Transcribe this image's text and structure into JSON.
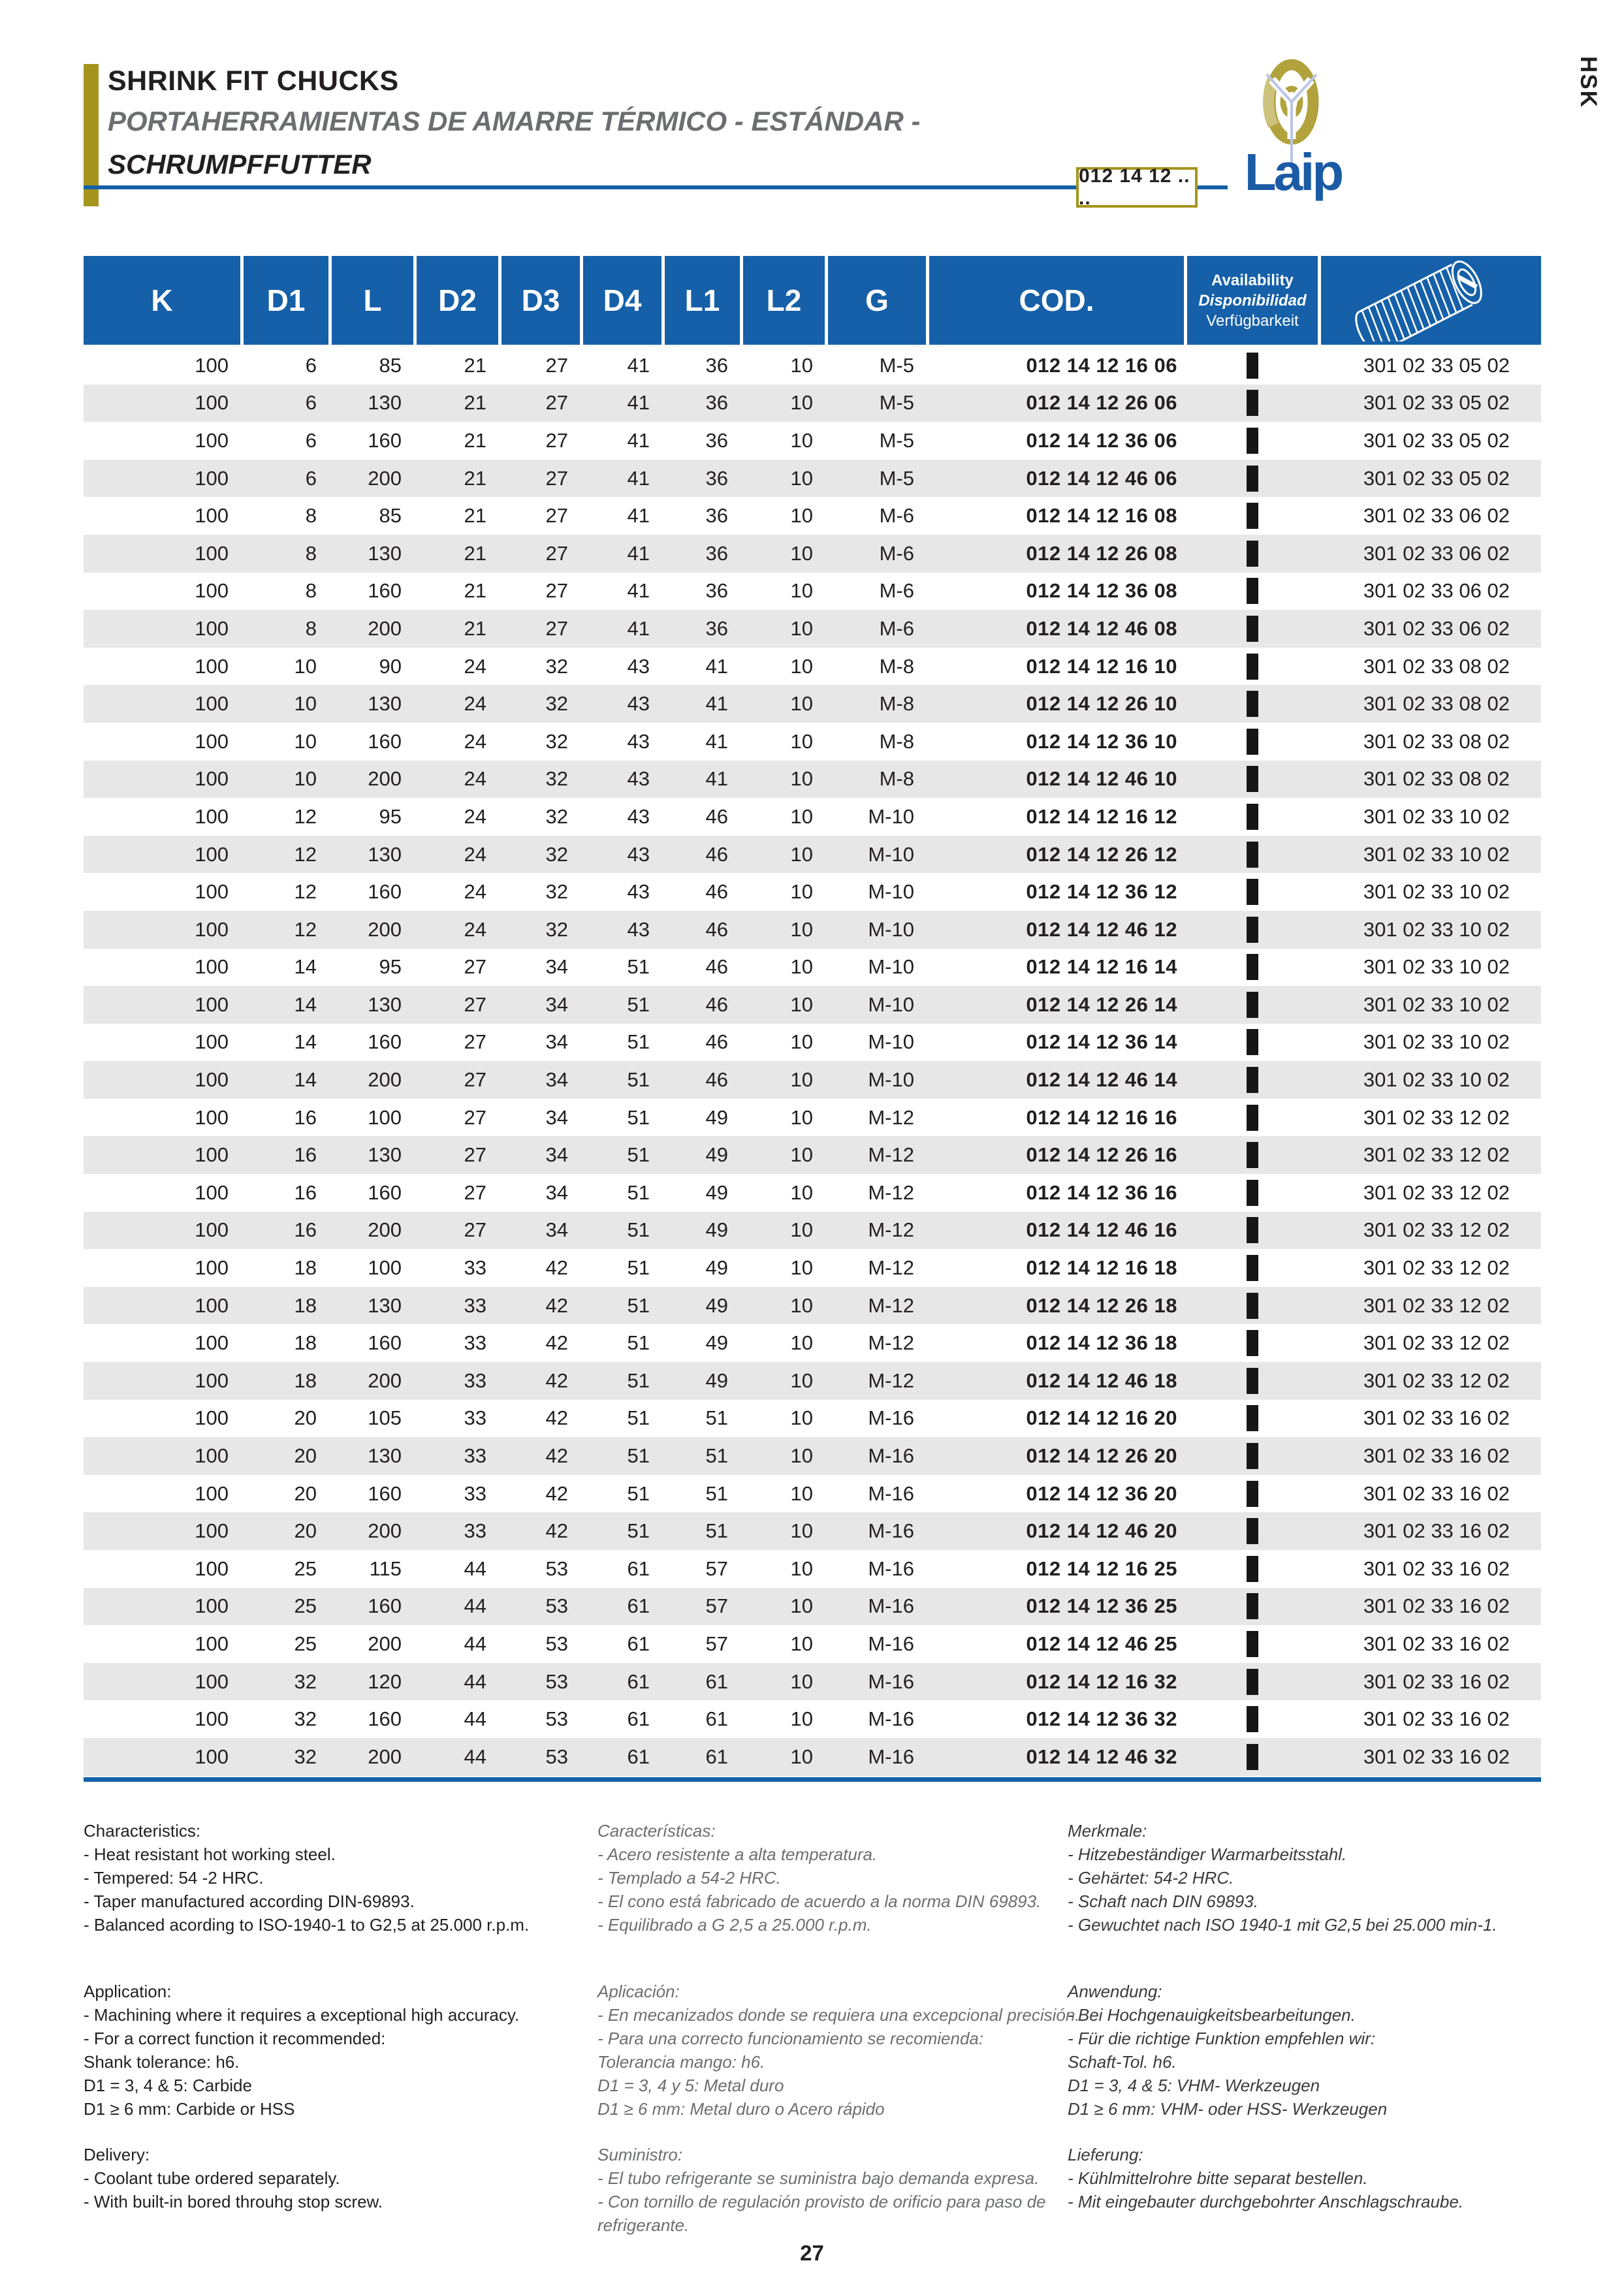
{
  "header": {
    "title": "SHRINK FIT CHUCKS",
    "subtitle_es": "PORTAHERRAMIENTAS DE AMARRE TÉRMICO - ESTÁNDAR -",
    "subtitle_de": "SCHRUMPFFUTTER",
    "product_code": "012 14 12 .. ..",
    "brand": "Laip",
    "corner_tag": "HSK",
    "accent_color": "#a5951d",
    "blue_color": "#1560a8"
  },
  "table": {
    "columns": [
      "K",
      "D1",
      "L",
      "D2",
      "D3",
      "D4",
      "L1",
      "L2",
      "G",
      "COD."
    ],
    "availability_header": {
      "en": "Availability",
      "es": "Disponibilidad",
      "de": "Verfügbarkeit"
    },
    "icon": "set-screw-drawing",
    "rows": [
      [
        "100",
        "6",
        "85",
        "21",
        "27",
        "41",
        "36",
        "10",
        "M-5",
        "012 14 12 16 06",
        true,
        "301 02 33 05 02"
      ],
      [
        "100",
        "6",
        "130",
        "21",
        "27",
        "41",
        "36",
        "10",
        "M-5",
        "012 14 12 26 06",
        true,
        "301 02 33 05 02"
      ],
      [
        "100",
        "6",
        "160",
        "21",
        "27",
        "41",
        "36",
        "10",
        "M-5",
        "012 14 12 36 06",
        true,
        "301 02 33 05 02"
      ],
      [
        "100",
        "6",
        "200",
        "21",
        "27",
        "41",
        "36",
        "10",
        "M-5",
        "012 14 12 46 06",
        true,
        "301 02 33 05 02"
      ],
      [
        "100",
        "8",
        "85",
        "21",
        "27",
        "41",
        "36",
        "10",
        "M-6",
        "012 14 12 16 08",
        true,
        "301 02 33 06 02"
      ],
      [
        "100",
        "8",
        "130",
        "21",
        "27",
        "41",
        "36",
        "10",
        "M-6",
        "012 14 12 26 08",
        true,
        "301 02 33 06 02"
      ],
      [
        "100",
        "8",
        "160",
        "21",
        "27",
        "41",
        "36",
        "10",
        "M-6",
        "012 14 12 36 08",
        true,
        "301 02 33 06 02"
      ],
      [
        "100",
        "8",
        "200",
        "21",
        "27",
        "41",
        "36",
        "10",
        "M-6",
        "012 14 12 46 08",
        true,
        "301 02 33 06 02"
      ],
      [
        "100",
        "10",
        "90",
        "24",
        "32",
        "43",
        "41",
        "10",
        "M-8",
        "012 14 12 16 10",
        true,
        "301 02 33 08 02"
      ],
      [
        "100",
        "10",
        "130",
        "24",
        "32",
        "43",
        "41",
        "10",
        "M-8",
        "012 14 12 26 10",
        true,
        "301 02 33 08 02"
      ],
      [
        "100",
        "10",
        "160",
        "24",
        "32",
        "43",
        "41",
        "10",
        "M-8",
        "012 14 12 36 10",
        true,
        "301 02 33 08 02"
      ],
      [
        "100",
        "10",
        "200",
        "24",
        "32",
        "43",
        "41",
        "10",
        "M-8",
        "012 14 12 46 10",
        true,
        "301 02 33 08 02"
      ],
      [
        "100",
        "12",
        "95",
        "24",
        "32",
        "43",
        "46",
        "10",
        "M-10",
        "012 14 12 16 12",
        true,
        "301 02 33 10 02"
      ],
      [
        "100",
        "12",
        "130",
        "24",
        "32",
        "43",
        "46",
        "10",
        "M-10",
        "012 14 12 26 12",
        true,
        "301 02 33 10 02"
      ],
      [
        "100",
        "12",
        "160",
        "24",
        "32",
        "43",
        "46",
        "10",
        "M-10",
        "012 14 12 36 12",
        true,
        "301 02 33 10 02"
      ],
      [
        "100",
        "12",
        "200",
        "24",
        "32",
        "43",
        "46",
        "10",
        "M-10",
        "012 14 12 46 12",
        true,
        "301 02 33 10 02"
      ],
      [
        "100",
        "14",
        "95",
        "27",
        "34",
        "51",
        "46",
        "10",
        "M-10",
        "012 14 12 16 14",
        true,
        "301 02 33 10 02"
      ],
      [
        "100",
        "14",
        "130",
        "27",
        "34",
        "51",
        "46",
        "10",
        "M-10",
        "012 14 12 26 14",
        true,
        "301 02 33 10 02"
      ],
      [
        "100",
        "14",
        "160",
        "27",
        "34",
        "51",
        "46",
        "10",
        "M-10",
        "012 14 12 36 14",
        true,
        "301 02 33 10 02"
      ],
      [
        "100",
        "14",
        "200",
        "27",
        "34",
        "51",
        "46",
        "10",
        "M-10",
        "012 14 12 46 14",
        true,
        "301 02 33 10 02"
      ],
      [
        "100",
        "16",
        "100",
        "27",
        "34",
        "51",
        "49",
        "10",
        "M-12",
        "012 14 12 16 16",
        true,
        "301 02 33 12 02"
      ],
      [
        "100",
        "16",
        "130",
        "27",
        "34",
        "51",
        "49",
        "10",
        "M-12",
        "012 14 12 26 16",
        true,
        "301 02 33 12 02"
      ],
      [
        "100",
        "16",
        "160",
        "27",
        "34",
        "51",
        "49",
        "10",
        "M-12",
        "012 14 12 36 16",
        true,
        "301 02 33 12 02"
      ],
      [
        "100",
        "16",
        "200",
        "27",
        "34",
        "51",
        "49",
        "10",
        "M-12",
        "012 14 12 46 16",
        true,
        "301 02 33 12 02"
      ],
      [
        "100",
        "18",
        "100",
        "33",
        "42",
        "51",
        "49",
        "10",
        "M-12",
        "012 14 12 16 18",
        true,
        "301 02 33 12 02"
      ],
      [
        "100",
        "18",
        "130",
        "33",
        "42",
        "51",
        "49",
        "10",
        "M-12",
        "012 14 12 26 18",
        true,
        "301 02 33 12 02"
      ],
      [
        "100",
        "18",
        "160",
        "33",
        "42",
        "51",
        "49",
        "10",
        "M-12",
        "012 14 12 36 18",
        true,
        "301 02 33 12 02"
      ],
      [
        "100",
        "18",
        "200",
        "33",
        "42",
        "51",
        "49",
        "10",
        "M-12",
        "012 14 12 46 18",
        true,
        "301 02 33 12 02"
      ],
      [
        "100",
        "20",
        "105",
        "33",
        "42",
        "51",
        "51",
        "10",
        "M-16",
        "012 14 12 16 20",
        true,
        "301 02 33 16 02"
      ],
      [
        "100",
        "20",
        "130",
        "33",
        "42",
        "51",
        "51",
        "10",
        "M-16",
        "012 14 12 26 20",
        true,
        "301 02 33 16 02"
      ],
      [
        "100",
        "20",
        "160",
        "33",
        "42",
        "51",
        "51",
        "10",
        "M-16",
        "012 14 12 36 20",
        true,
        "301 02 33 16 02"
      ],
      [
        "100",
        "20",
        "200",
        "33",
        "42",
        "51",
        "51",
        "10",
        "M-16",
        "012 14 12 46 20",
        true,
        "301 02 33 16 02"
      ],
      [
        "100",
        "25",
        "115",
        "44",
        "53",
        "61",
        "57",
        "10",
        "M-16",
        "012 14 12 16 25",
        true,
        "301 02 33 16 02"
      ],
      [
        "100",
        "25",
        "160",
        "44",
        "53",
        "61",
        "57",
        "10",
        "M-16",
        "012 14 12 36 25",
        true,
        "301 02 33 16 02"
      ],
      [
        "100",
        "25",
        "200",
        "44",
        "53",
        "61",
        "57",
        "10",
        "M-16",
        "012 14 12 46 25",
        true,
        "301 02 33 16 02"
      ],
      [
        "100",
        "32",
        "120",
        "44",
        "53",
        "61",
        "61",
        "10",
        "M-16",
        "012 14 12 16 32",
        true,
        "301 02 33 16 02"
      ],
      [
        "100",
        "32",
        "160",
        "44",
        "53",
        "61",
        "61",
        "10",
        "M-16",
        "012 14 12 36 32",
        true,
        "301 02 33 16 02"
      ],
      [
        "100",
        "32",
        "200",
        "44",
        "53",
        "61",
        "61",
        "10",
        "M-16",
        "012 14 12 46 32",
        true,
        "301 02 33 16 02"
      ]
    ]
  },
  "footer": {
    "en": {
      "sections": [
        {
          "title": "Characteristics:",
          "lines": [
            "- Heat resistant hot working steel.",
            "- Tempered: 54 -2 HRC.",
            "- Taper manufactured according DIN-69893.",
            "- Balanced acording to ISO-1940-1 to G2,5 at 25.000 r.p.m."
          ]
        },
        {
          "title": "Application:",
          "lines": [
            "- Machining where it requires a exceptional high accuracy.",
            "- For a correct function it recommended:",
            "Shank tolerance: h6.",
            "D1 = 3, 4 & 5:  Carbide",
            "D1 ≥ 6 mm:  Carbide or HSS"
          ]
        },
        {
          "title": "Delivery:",
          "lines": [
            "- Coolant tube ordered separately.",
            "- With built-in bored throuhg stop screw."
          ]
        }
      ]
    },
    "es": {
      "sections": [
        {
          "title": "Características:",
          "lines": [
            "- Acero resistente a alta temperatura.",
            "- Templado a 54-2 HRC.",
            "- El cono  está fabricado de acuerdo a la norma DIN 69893.",
            "- Equilibrado a G 2,5 a 25.000 r.p.m."
          ]
        },
        {
          "title": "Aplicación:",
          "lines": [
            "- En mecanizados donde se requiera una excepcional precisión.",
            "- Para una correcto funcionamiento se recomienda:",
            "Tolerancia mango: h6.",
            "D1 = 3, 4 y 5:  Metal duro",
            "D1 ≥ 6 mm:  Metal duro o Acero rápido"
          ]
        },
        {
          "title": "Suministro:",
          "lines": [
            "- El tubo refrigerante se suministra bajo demanda expresa.",
            "- Con tornillo de regulación provisto de orificio para paso de",
            "refrigerante."
          ]
        }
      ]
    },
    "de": {
      "sections": [
        {
          "title": "Merkmale:",
          "lines": [
            "- Hitzebeständiger Warmarbeitsstahl.",
            "- Gehärtet: 54-2 HRC.",
            "- Schaft nach DIN 69893.",
            "- Gewuchtet nach ISO 1940-1 mit G2,5 bei 25.000 min-1."
          ]
        },
        {
          "title": "Anwendung:",
          "lines": [
            "- Bei Hochgenauigkeitsbearbeitungen.",
            "- Für die richtige Funktion empfehlen wir:",
            "Schaft-Tol. h6.",
            "D1 = 3, 4 & 5:  VHM- Werkzeugen",
            "D1 ≥ 6 mm:  VHM- oder HSS- Werkzeugen"
          ]
        },
        {
          "title": "Lieferung:",
          "lines": [
            "- Kühlmittelrohre bitte separat bestellen.",
            "- Mit eingebauter durchgebohrter Anschlagschraube."
          ]
        }
      ]
    }
  },
  "page_number": "27"
}
